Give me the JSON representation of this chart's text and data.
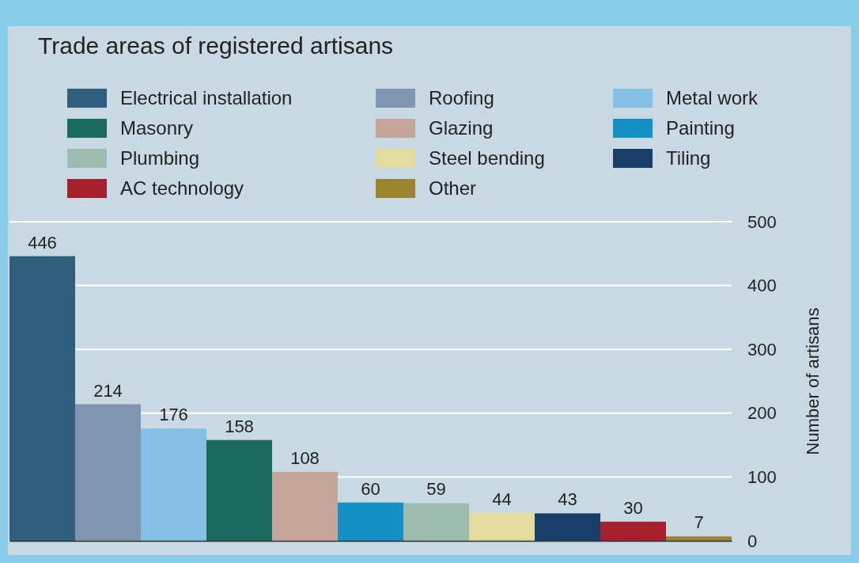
{
  "chart_data": {
    "type": "bar",
    "title": "Trade areas of registered artisans",
    "ylabel": "Number of artisans",
    "categories": [
      null,
      null,
      null,
      null,
      null,
      null,
      null,
      null,
      null,
      null,
      null
    ],
    "series": [
      {
        "name": "Electrical installation",
        "color": "#2f5f7c",
        "values": [
          446,
          null,
          null,
          null,
          null,
          null,
          null,
          null,
          null,
          null,
          null
        ]
      },
      {
        "name": "Roofing",
        "color": "#7f97ae",
        "values": [
          null,
          214,
          null,
          null,
          null,
          null,
          null,
          null,
          null,
          null,
          null
        ]
      },
      {
        "name": "Metal work",
        "color": "#86bfe6",
        "values": [
          null,
          null,
          176,
          null,
          null,
          null,
          null,
          null,
          null,
          null,
          null
        ]
      },
      {
        "name": "Masonry",
        "color": "#1a6b5e",
        "values": [
          null,
          null,
          null,
          158,
          null,
          null,
          null,
          null,
          null,
          null,
          null
        ]
      },
      {
        "name": "Glazing",
        "color": "#c4a59a",
        "values": [
          null,
          null,
          null,
          null,
          108,
          null,
          null,
          null,
          null,
          null,
          null
        ]
      },
      {
        "name": "Painting",
        "color": "#1590c4",
        "values": [
          null,
          null,
          null,
          null,
          null,
          60,
          null,
          null,
          null,
          null,
          null
        ]
      },
      {
        "name": "Plumbing",
        "color": "#9dbcb0",
        "values": [
          null,
          null,
          null,
          null,
          null,
          null,
          59,
          null,
          null,
          null,
          null
        ]
      },
      {
        "name": "Steel bending",
        "color": "#e3dc9e",
        "values": [
          null,
          null,
          null,
          null,
          null,
          null,
          null,
          44,
          null,
          null,
          null
        ]
      },
      {
        "name": "Tiling",
        "color": "#173f6a",
        "values": [
          null,
          null,
          null,
          null,
          null,
          null,
          null,
          null,
          43,
          null,
          null
        ]
      },
      {
        "name": "AC technology",
        "color": "#a3202c",
        "values": [
          null,
          null,
          null,
          null,
          null,
          null,
          null,
          null,
          null,
          30,
          null
        ]
      },
      {
        "name": "Other",
        "color": "#9b8530",
        "values": [
          null,
          null,
          null,
          null,
          null,
          null,
          null,
          null,
          null,
          null,
          7
        ]
      }
    ],
    "stacked": true,
    "ylim": [
      0,
      500
    ],
    "yticks": [
      0,
      100,
      200,
      300,
      400,
      500
    ],
    "grid": "y",
    "legend": "top",
    "tick_labels": "y",
    "data_labels": true
  }
}
